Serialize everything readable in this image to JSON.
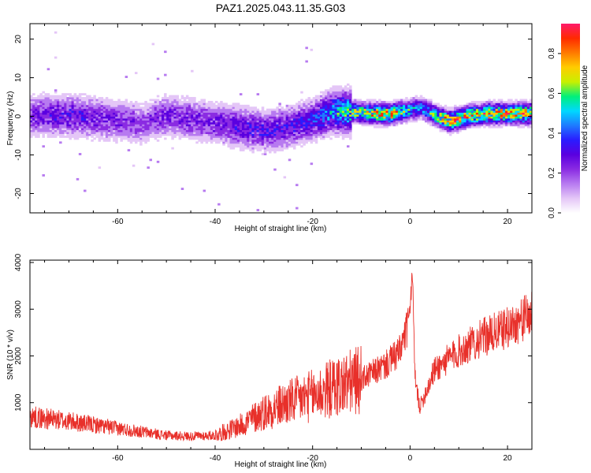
{
  "title": "PAZ1.2025.043.11.35.G03",
  "colors": {
    "snr_line": "#e8302a",
    "spectrogram_palette": [
      "#ffffff",
      "#e4c6f7",
      "#b77af0",
      "#8a2be2",
      "#5a00e0",
      "#2a1cff",
      "#1e7bff",
      "#00d8ff",
      "#00f07a",
      "#c8f000",
      "#ffcc00",
      "#ff7a00",
      "#ff2a00",
      "#ff1a6a"
    ]
  },
  "chart_data": [
    {
      "type": "heatmap",
      "xlabel": "Height of straight line (km)",
      "ylabel": "Frequency (Hz)",
      "xlim": [
        -78,
        25
      ],
      "ylim": [
        -25,
        24
      ],
      "xticks": [
        -60,
        -40,
        -20,
        0,
        20
      ],
      "yticks": [
        -20,
        -10,
        0,
        10,
        20
      ],
      "xtick_labels": [
        "-60",
        "-40",
        "-20",
        "0",
        "20"
      ],
      "ytick_labels": [
        "-20",
        "-10",
        "0",
        "10",
        "20"
      ],
      "colorbar": {
        "label": "Normalized spectral amplitude",
        "range": [
          0,
          0.95
        ],
        "ticks": [
          0.0,
          0.2,
          0.4,
          0.6,
          0.8
        ],
        "tick_labels": [
          "0.0",
          "0.2",
          "0.4",
          "0.6",
          "0.8"
        ]
      },
      "ridge": {
        "x": [
          -78,
          -70,
          -62,
          -55,
          -50,
          -45,
          -40,
          -35,
          -30,
          -25,
          -20,
          -16,
          -12,
          -8,
          -4,
          0,
          2,
          5,
          8,
          12,
          16,
          20,
          25
        ],
        "y": [
          0,
          0,
          -1,
          -2,
          0,
          -1,
          -2,
          -3,
          -4,
          -3,
          -1,
          1,
          1,
          0.5,
          0.5,
          1.5,
          2,
          0,
          -1.5,
          0,
          0.5,
          0.5,
          0.5
        ],
        "peak_amplitude": [
          0.3,
          0.35,
          0.3,
          0.25,
          0.3,
          0.3,
          0.3,
          0.35,
          0.35,
          0.35,
          0.4,
          0.55,
          0.7,
          0.85,
          0.9,
          0.6,
          0.5,
          0.7,
          0.9,
          0.85,
          0.9,
          0.9,
          0.9
        ]
      }
    },
    {
      "type": "line",
      "xlabel": "Height of straight line (km)",
      "ylabel": "SNR (10 * v/v)",
      "xlim": [
        -78,
        25
      ],
      "ylim": [
        0,
        4050
      ],
      "xticks": [
        -60,
        -40,
        -20,
        0,
        20
      ],
      "yticks": [
        1000,
        2000,
        3000,
        4000
      ],
      "xtick_labels": [
        "-60",
        "-40",
        "-20",
        "0",
        "20"
      ],
      "ytick_labels": [
        "1000",
        "2000",
        "3000",
        "4000"
      ],
      "series": [
        {
          "envelope_x": [
            -78,
            -70,
            -60,
            -50,
            -45,
            -40,
            -35,
            -30,
            -25,
            -20,
            -15,
            -10,
            -5,
            -2,
            0,
            0.5,
            1,
            2,
            5,
            10,
            15,
            20,
            25
          ],
          "envelope_y": [
            700,
            600,
            450,
            300,
            280,
            300,
            500,
            800,
            1000,
            1150,
            1350,
            1500,
            1800,
            2100,
            2800,
            3600,
            1500,
            900,
            1700,
            2100,
            2400,
            2600,
            2900
          ]
        }
      ]
    }
  ]
}
